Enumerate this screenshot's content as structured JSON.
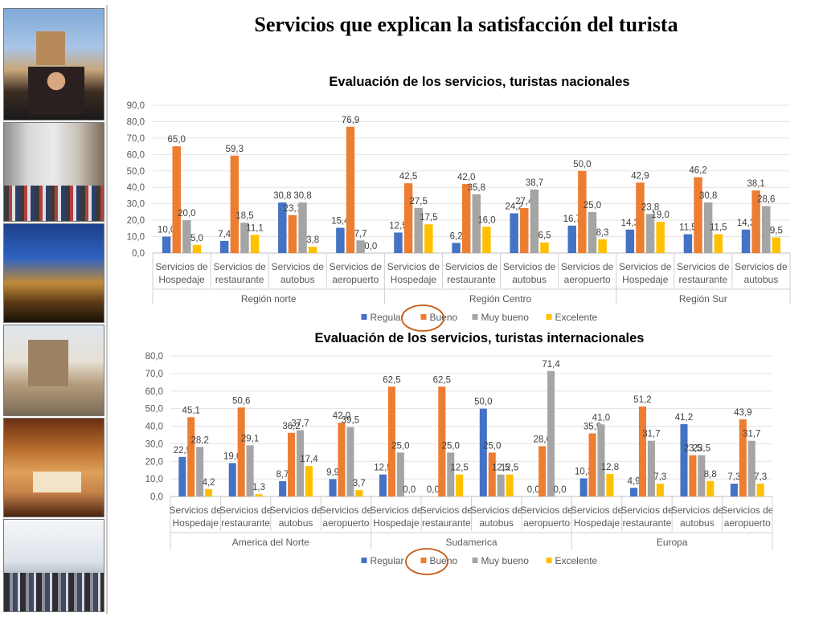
{
  "page": {
    "title": "Servicios que explican la satisfacción del turista"
  },
  "colors": {
    "regular": "#4472C4",
    "bueno": "#ED7D31",
    "muy_bueno": "#A5A5A5",
    "excelente": "#FFC000",
    "highlight_circle": "#C55A11"
  },
  "sidebar": {
    "photos": [
      "city-plaza-photo",
      "street-crowd-photo",
      "night-terrace-photo",
      "church-tourists-photo",
      "hotel-room-photo",
      "airport-crowd-photo"
    ]
  },
  "chart_data": [
    {
      "type": "bar",
      "title": "Evaluación de los servicios, turistas nacionales",
      "ylim": [
        0,
        90
      ],
      "yticks": [
        "0,0",
        "10,0",
        "20,0",
        "30,0",
        "40,0",
        "50,0",
        "60,0",
        "70,0",
        "80,0",
        "90,0"
      ],
      "groups": [
        {
          "name": "Región norte",
          "categories": [
            {
              "line1": "Servicios de",
              "line2": "Hospedaje",
              "values": [
                10.0,
                65.0,
                20.0,
                5.0
              ],
              "labels": [
                "10,0",
                "65,0",
                "20,0",
                "5,0"
              ]
            },
            {
              "line1": "Servicios de",
              "line2": "restaurante",
              "values": [
                7.4,
                59.3,
                18.5,
                11.1
              ],
              "labels": [
                "7,4",
                "59,3",
                "18,5",
                "11,1"
              ]
            },
            {
              "line1": "Servicios de",
              "line2": "autobus",
              "values": [
                30.8,
                23.1,
                30.8,
                3.8
              ],
              "labels": [
                "30,8",
                "23,1",
                "30,8",
                "3,8"
              ]
            },
            {
              "line1": "Servicios de",
              "line2": "aeropuerto",
              "values": [
                15.4,
                76.9,
                7.7,
                0.0
              ],
              "labels": [
                "15,4",
                "76,9",
                "7,7",
                "0,0"
              ]
            }
          ]
        },
        {
          "name": "Región Centro",
          "categories": [
            {
              "line1": "Servicios de",
              "line2": "Hospedaje",
              "values": [
                12.5,
                42.5,
                27.5,
                17.5
              ],
              "labels": [
                "12,5",
                "42,5",
                "27,5",
                "17,5"
              ]
            },
            {
              "line1": "Servicios de",
              "line2": "restaurante",
              "values": [
                6.2,
                42.0,
                35.8,
                16.0
              ],
              "labels": [
                "6,2",
                "42,0",
                "35,8",
                "16,0"
              ]
            },
            {
              "line1": "Servicios de",
              "line2": "autobus",
              "values": [
                24.2,
                27.4,
                38.7,
                6.5
              ],
              "labels": [
                "24,2",
                "27,4",
                "38,7",
                "6,5"
              ]
            },
            {
              "line1": "Servicios de",
              "line2": "aeropuerto",
              "values": [
                16.7,
                50.0,
                25.0,
                8.3
              ],
              "labels": [
                "16,7",
                "50,0",
                "25,0",
                "8,3"
              ]
            }
          ]
        },
        {
          "name": "Región Sur",
          "categories": [
            {
              "line1": "Servicios de",
              "line2": "Hospedaje",
              "values": [
                14.3,
                42.9,
                23.8,
                19.0
              ],
              "labels": [
                "14,3",
                "42,9",
                "23,8",
                "19,0"
              ]
            },
            {
              "line1": "Servicios de",
              "line2": "restaurante",
              "values": [
                11.5,
                46.2,
                30.8,
                11.5
              ],
              "labels": [
                "11,5",
                "46,2",
                "30,8",
                "11,5"
              ]
            },
            {
              "line1": "Servicios de",
              "line2": "autobus",
              "values": [
                14.3,
                38.1,
                28.6,
                9.5
              ],
              "labels": [
                "14,3",
                "38,1",
                "28,6",
                "9,5"
              ]
            }
          ]
        }
      ],
      "series": [
        {
          "name": "Regular"
        },
        {
          "name": "Bueno"
        },
        {
          "name": "Muy bueno"
        },
        {
          "name": "Excelente"
        }
      ],
      "legend_position": "bottom",
      "highlighted_series": "Bueno"
    },
    {
      "type": "bar",
      "title": "Evaluación de los servicios, turistas internacionales",
      "ylim": [
        0,
        80
      ],
      "yticks": [
        "0,0",
        "10,0",
        "20,0",
        "30,0",
        "40,0",
        "50,0",
        "60,0",
        "70,0",
        "80,0"
      ],
      "groups": [
        {
          "name": "America del Norte",
          "categories": [
            {
              "line1": "Servicios de",
              "line2": "Hospedaje",
              "values": [
                22.5,
                45.1,
                28.2,
                4.2
              ],
              "labels": [
                "22,5",
                "45,1",
                "28,2",
                "4,2"
              ]
            },
            {
              "line1": "Servicios de",
              "line2": "restaurante",
              "values": [
                19.0,
                50.6,
                29.1,
                1.3
              ],
              "labels": [
                "19,0",
                "50,6",
                "29,1",
                "1,3"
              ]
            },
            {
              "line1": "Servicios de",
              "line2": "autobus",
              "values": [
                8.7,
                36.2,
                37.7,
                17.4
              ],
              "labels": [
                "8,7",
                "36,2",
                "37,7",
                "17,4"
              ]
            },
            {
              "line1": "Servicios de",
              "line2": "aeropuerto",
              "values": [
                9.9,
                42.0,
                39.5,
                3.7
              ],
              "labels": [
                "9,9",
                "42,0",
                "39,5",
                "3,7"
              ]
            }
          ]
        },
        {
          "name": "Sudamerica",
          "categories": [
            {
              "line1": "Servicios de",
              "line2": "Hospedaje",
              "values": [
                12.5,
                62.5,
                25.0,
                0.0
              ],
              "labels": [
                "12,5",
                "62,5",
                "25,0",
                "0,0"
              ]
            },
            {
              "line1": "Servicios de",
              "line2": "restaurante",
              "values": [
                0.0,
                62.5,
                25.0,
                12.5
              ],
              "labels": [
                "0,0",
                "62,5",
                "25,0",
                "12,5"
              ]
            },
            {
              "line1": "Servicios de",
              "line2": "autobus",
              "values": [
                50.0,
                25.0,
                12.5,
                12.5
              ],
              "labels": [
                "50,0",
                "25,0",
                "12,5",
                "12,5"
              ]
            },
            {
              "line1": "Servicios de",
              "line2": "aeropuerto",
              "values": [
                0.0,
                28.6,
                71.4,
                0.0
              ],
              "labels": [
                "0,0",
                "28,6",
                "71,4",
                "0,0"
              ]
            }
          ]
        },
        {
          "name": "Europa",
          "categories": [
            {
              "line1": "Servicios de",
              "line2": "Hospedaje",
              "values": [
                10.3,
                35.9,
                41.0,
                12.8
              ],
              "labels": [
                "10,3",
                "35,9",
                "41,0",
                "12,8"
              ]
            },
            {
              "line1": "Servicios de",
              "line2": "restaurante",
              "values": [
                4.9,
                51.2,
                31.7,
                7.3
              ],
              "labels": [
                "4,9",
                "51,2",
                "31,7",
                "7,3"
              ]
            },
            {
              "line1": "Servicios de",
              "line2": "autobus",
              "values": [
                41.2,
                23.5,
                23.5,
                8.8
              ],
              "labels": [
                "41,2",
                "23,5",
                "23,5",
                "8,8"
              ]
            },
            {
              "line1": "Servicios de",
              "line2": "aeropuerto",
              "values": [
                7.3,
                43.9,
                31.7,
                7.3
              ],
              "labels": [
                "7,3",
                "43,9",
                "31,7",
                "7,3"
              ]
            }
          ]
        }
      ],
      "series": [
        {
          "name": "Regular"
        },
        {
          "name": "Bueno"
        },
        {
          "name": "Muy bueno"
        },
        {
          "name": "Excelente"
        }
      ],
      "legend_position": "bottom",
      "highlighted_series": "Bueno"
    }
  ]
}
